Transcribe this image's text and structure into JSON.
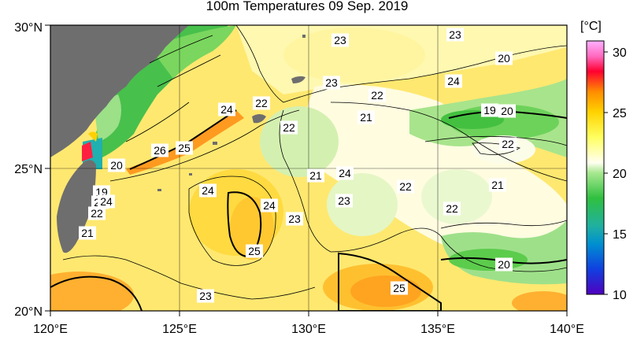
{
  "title": "100m Temperatures  09 Sep. 2019",
  "lat_labels": [
    "30°N",
    "25°N",
    "20°N"
  ],
  "lon_labels": [
    "120°E",
    "125°E",
    "130°E",
    "135°E",
    "140°E"
  ],
  "colorbar": {
    "unit": "[°C]",
    "ticks": [
      "30",
      "25",
      "20",
      "15",
      "10"
    ],
    "colors": [
      "#ff80ff",
      "#ff0030",
      "#ff6a00",
      "#ffd200",
      "#ffff60",
      "#fffff0",
      "#c8f0b0",
      "#4ccc3c",
      "#20b0a0",
      "#0090d0",
      "#1040e0",
      "#5000c0"
    ]
  },
  "contour_labels": [
    {
      "text": "23"
    },
    {
      "text": "23"
    },
    {
      "text": "20"
    },
    {
      "text": "24"
    },
    {
      "text": "23"
    },
    {
      "text": "22"
    },
    {
      "text": "24"
    },
    {
      "text": "22"
    },
    {
      "text": "22"
    },
    {
      "text": "19"
    },
    {
      "text": "20"
    },
    {
      "text": "21"
    },
    {
      "text": "22"
    },
    {
      "text": "26"
    },
    {
      "text": "25"
    },
    {
      "text": "20"
    },
    {
      "text": "24"
    },
    {
      "text": "21"
    },
    {
      "text": "24"
    },
    {
      "text": "22"
    },
    {
      "text": "21"
    },
    {
      "text": "19"
    },
    {
      "text": "23"
    },
    {
      "text": "24"
    },
    {
      "text": "22"
    },
    {
      "text": "24"
    },
    {
      "text": "23"
    },
    {
      "text": "22"
    },
    {
      "text": "23"
    },
    {
      "text": "21"
    },
    {
      "text": "25"
    },
    {
      "text": "20"
    },
    {
      "text": "25"
    },
    {
      "text": "23"
    }
  ]
}
